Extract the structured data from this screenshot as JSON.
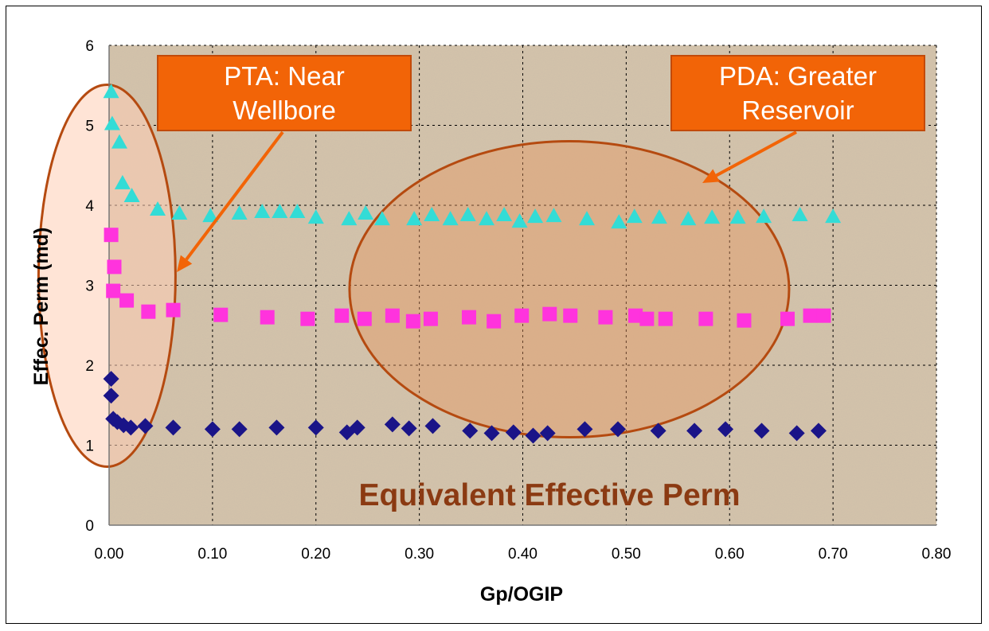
{
  "chart_data": {
    "type": "scatter",
    "title": "Equivalent Effective Perm",
    "xlabel": "Gp/OGIP",
    "ylabel": "Effec. Perm (md)",
    "xlim": [
      0,
      0.8
    ],
    "ylim": [
      0,
      6
    ],
    "x_tick_labels": [
      "0.00",
      "0.10",
      "0.20",
      "0.30",
      "0.40",
      "0.50",
      "0.60",
      "0.70",
      "0.80"
    ],
    "y_tick_labels": [
      "0",
      "1",
      "2",
      "3",
      "4",
      "5",
      "6"
    ],
    "grid": true,
    "series": [
      {
        "name": "Cyan triangles",
        "marker": "triangle",
        "color": "#33dcd6",
        "points": [
          [
            0.002,
            5.42
          ],
          [
            0.003,
            5.02
          ],
          [
            0.01,
            4.79
          ],
          [
            0.013,
            4.28
          ],
          [
            0.022,
            4.12
          ],
          [
            0.047,
            3.95
          ],
          [
            0.068,
            3.9
          ],
          [
            0.098,
            3.87
          ],
          [
            0.126,
            3.9
          ],
          [
            0.148,
            3.92
          ],
          [
            0.165,
            3.92
          ],
          [
            0.182,
            3.92
          ],
          [
            0.2,
            3.85
          ],
          [
            0.232,
            3.83
          ],
          [
            0.248,
            3.9
          ],
          [
            0.264,
            3.83
          ],
          [
            0.295,
            3.83
          ],
          [
            0.312,
            3.88
          ],
          [
            0.33,
            3.83
          ],
          [
            0.347,
            3.88
          ],
          [
            0.365,
            3.83
          ],
          [
            0.382,
            3.88
          ],
          [
            0.397,
            3.8
          ],
          [
            0.412,
            3.86
          ],
          [
            0.43,
            3.87
          ],
          [
            0.462,
            3.83
          ],
          [
            0.493,
            3.79
          ],
          [
            0.508,
            3.86
          ],
          [
            0.532,
            3.85
          ],
          [
            0.56,
            3.83
          ],
          [
            0.583,
            3.85
          ],
          [
            0.608,
            3.85
          ],
          [
            0.633,
            3.86
          ],
          [
            0.668,
            3.88
          ],
          [
            0.7,
            3.86
          ]
        ]
      },
      {
        "name": "Magenta squares",
        "marker": "square",
        "color": "#ff33dd",
        "points": [
          [
            0.002,
            3.63
          ],
          [
            0.005,
            3.23
          ],
          [
            0.004,
            2.93
          ],
          [
            0.017,
            2.81
          ],
          [
            0.038,
            2.67
          ],
          [
            0.062,
            2.69
          ],
          [
            0.108,
            2.63
          ],
          [
            0.153,
            2.6
          ],
          [
            0.192,
            2.58
          ],
          [
            0.225,
            2.62
          ],
          [
            0.247,
            2.58
          ],
          [
            0.274,
            2.62
          ],
          [
            0.294,
            2.55
          ],
          [
            0.311,
            2.58
          ],
          [
            0.348,
            2.6
          ],
          [
            0.372,
            2.55
          ],
          [
            0.399,
            2.62
          ],
          [
            0.426,
            2.64
          ],
          [
            0.446,
            2.62
          ],
          [
            0.48,
            2.6
          ],
          [
            0.509,
            2.62
          ],
          [
            0.52,
            2.58
          ],
          [
            0.538,
            2.58
          ],
          [
            0.577,
            2.58
          ],
          [
            0.614,
            2.56
          ],
          [
            0.656,
            2.58
          ],
          [
            0.678,
            2.62
          ],
          [
            0.691,
            2.62
          ]
        ]
      },
      {
        "name": "Navy diamonds",
        "marker": "diamond",
        "color": "#1a1488",
        "points": [
          [
            0.002,
            1.83
          ],
          [
            0.002,
            1.62
          ],
          [
            0.004,
            1.33
          ],
          [
            0.008,
            1.29
          ],
          [
            0.014,
            1.25
          ],
          [
            0.021,
            1.22
          ],
          [
            0.035,
            1.24
          ],
          [
            0.062,
            1.22
          ],
          [
            0.1,
            1.2
          ],
          [
            0.126,
            1.2
          ],
          [
            0.162,
            1.22
          ],
          [
            0.2,
            1.22
          ],
          [
            0.23,
            1.16
          ],
          [
            0.24,
            1.22
          ],
          [
            0.274,
            1.26
          ],
          [
            0.29,
            1.21
          ],
          [
            0.313,
            1.24
          ],
          [
            0.349,
            1.18
          ],
          [
            0.37,
            1.15
          ],
          [
            0.391,
            1.16
          ],
          [
            0.41,
            1.12
          ],
          [
            0.424,
            1.15
          ],
          [
            0.46,
            1.2
          ],
          [
            0.492,
            1.2
          ],
          [
            0.531,
            1.18
          ],
          [
            0.566,
            1.18
          ],
          [
            0.596,
            1.2
          ],
          [
            0.631,
            1.18
          ],
          [
            0.665,
            1.15
          ],
          [
            0.686,
            1.18
          ]
        ]
      }
    ],
    "annotations": [
      {
        "text": [
          "PTA: Near",
          "Wellbore"
        ]
      },
      {
        "text": [
          "PDA: Greater",
          "Reservoir"
        ]
      }
    ]
  },
  "colors": {
    "plot_background": "#d4c3aa",
    "ellipse_stroke": "#b54a10",
    "callout_fill": "#f26407",
    "title_color": "#8b3a12"
  }
}
